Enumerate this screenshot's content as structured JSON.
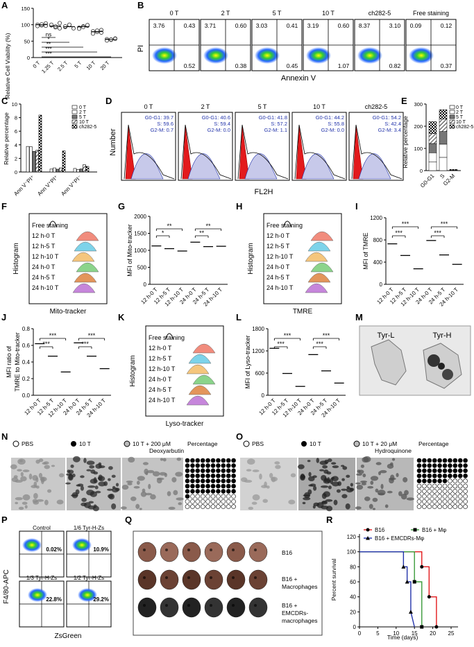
{
  "panels": {
    "A": {
      "letter": "A",
      "ylabel": "Relative Cell Viability (%)",
      "categories": [
        "0 T",
        "1.25 T",
        "2.5 T",
        "5 T",
        "10 T",
        "20 T"
      ],
      "yticks": [
        "150",
        "100",
        "50",
        "0"
      ],
      "stats": [
        "ns",
        "*",
        "**",
        "***",
        "***"
      ]
    },
    "B": {
      "letter": "B",
      "groups": [
        "0 T",
        "2 T",
        "5 T",
        "10 T",
        "ch282-5",
        "Free staining"
      ],
      "quadrants": [
        [
          "3.76",
          "0.43",
          "0.52"
        ],
        [
          "3.71",
          "0.60",
          "0.38"
        ],
        [
          "3.03",
          "0.41",
          "0.45"
        ],
        [
          "3.19",
          "0.60",
          "1.07"
        ],
        [
          "8.37",
          "3.10",
          "0.82"
        ],
        [
          "0.09",
          "0.12",
          "0.37"
        ]
      ],
      "ylabel": "PI",
      "xlabel": "Annexin V"
    },
    "C": {
      "letter": "C",
      "ylabel": "Relative percentage",
      "categories": [
        "Ann V⁻PI⁺",
        "Ann V⁺PI⁺",
        "Ann V⁺PI⁻"
      ],
      "legend": [
        "0 T",
        "2 T",
        "5 T",
        "10 T",
        "ch282-5"
      ],
      "yticks": [
        "10",
        "8",
        "6",
        "4",
        "2",
        "0"
      ]
    },
    "D": {
      "letter": "D",
      "groups": [
        "0 T",
        "2 T",
        "5 T",
        "10 T",
        "ch282-5"
      ],
      "cycle": [
        [
          "G0-G1: 39.7",
          "S: 59.6",
          "G2-M: 0.7"
        ],
        [
          "G0-G1: 40.6",
          "S: 59.4",
          "G2-M: 0.0"
        ],
        [
          "G0-G1: 41.8",
          "S: 57.2",
          "G2-M: 1.1"
        ],
        [
          "G0-G1: 44.2",
          "S: 55.8",
          "G2-M: 0.0"
        ],
        [
          "G0-G1: 54.2",
          "S: 42.4",
          "G2-M: 3.4"
        ]
      ],
      "ylabel": "Number",
      "xlabel": "FL2H"
    },
    "E": {
      "letter": "E",
      "ylabel": "Relative percentage",
      "categories": [
        "G0-G1",
        "S",
        "G2-M"
      ],
      "legend": [
        "0 T",
        "2 T",
        "5 T",
        "10 T",
        "ch282-5"
      ],
      "yticks": [
        "300",
        "200",
        "100",
        "0"
      ]
    },
    "F": {
      "letter": "F",
      "ylabel": "Histogram",
      "xlabel": "Mito-tracker",
      "rows": [
        "Free staining",
        "12 h-0 T",
        "12 h-5 T",
        "12 h-10 T",
        "24 h-0 T",
        "24 h-5 T",
        "24 h-10 T"
      ]
    },
    "G": {
      "letter": "G",
      "ylabel": "MFI of Mito-tracker",
      "yticks": [
        "2000",
        "1500",
        "1000",
        "500",
        "0"
      ],
      "categories": [
        "12 h-0 T",
        "12 h-5 T",
        "12 h-10 T",
        "24 h-0 T",
        "24 h-5 T",
        "24 h-10 T"
      ],
      "stats": [
        "**",
        "*",
        "**",
        "**"
      ]
    },
    "H": {
      "letter": "H",
      "ylabel": "Histogram",
      "xlabel": "TMRE",
      "rows": [
        "Free staining",
        "12 h-0 T",
        "12 h-5 T",
        "12 h-10 T",
        "24 h-0 T",
        "24 h-5 T",
        "24 h-10 T"
      ]
    },
    "I": {
      "letter": "I",
      "ylabel": "MFI of TMRE",
      "yticks": [
        "1200",
        "800",
        "400",
        "0"
      ],
      "categories": [
        "12 h-0 T",
        "12 h-5 T",
        "12 h-10 T",
        "24 h-0 T",
        "24 h-5 T",
        "24 h-10 T"
      ],
      "stats": [
        "***",
        "***",
        "***",
        "***"
      ]
    },
    "J": {
      "letter": "J",
      "ylabel1": "MFI ratio of",
      "ylabel2": "TMRE to Mito-tracker",
      "yticks": [
        "0.8",
        "0.6",
        "0.4",
        "0.2",
        "0.0"
      ],
      "categories": [
        "12 h-0 T",
        "12 h-5 T",
        "12 h-10 T",
        "24 h-0 T",
        "24 h-5 T",
        "24 h-10 T"
      ],
      "stats": [
        "***",
        "***",
        "***",
        "***"
      ]
    },
    "K": {
      "letter": "K",
      "ylabel": "Histogram",
      "xlabel": "Lyso-tracker",
      "rows": [
        "Free staining",
        "12 h-0 T",
        "12 h-5 T",
        "12 h-10 T",
        "24 h-0 T",
        "24 h-5 T",
        "24 h-10 T"
      ]
    },
    "L": {
      "letter": "L",
      "ylabel": "MFI of Lyso-tracker",
      "yticks": [
        "1800",
        "1200",
        "600",
        "0"
      ],
      "categories": [
        "12 h-0 T",
        "12 h-5 T",
        "12 h-10 T",
        "24 h-0 T",
        "24 h-5 T",
        "24 h-10 T"
      ],
      "stats": [
        "***",
        "***",
        "***",
        "***"
      ]
    },
    "M": {
      "letter": "M",
      "labels": [
        "Tyr-L",
        "Tyr-H"
      ]
    },
    "N": {
      "letter": "N",
      "legend": [
        "PBS",
        "10 T",
        "10 T + 200 μM",
        "Deoxyarbutin",
        "Percentage"
      ]
    },
    "O": {
      "letter": "O",
      "legend": [
        "PBS",
        "10 T",
        "10 T + 20 μM",
        "Hydroquinone",
        "Percentage"
      ]
    },
    "P": {
      "letter": "P",
      "ylabel": "F4/80-APC",
      "xlabel": "ZsGreen",
      "plots": [
        [
          "Control",
          "0.02%"
        ],
        [
          "1/6 Tyr-H-Zs",
          "10.9%"
        ],
        [
          "1/3 Tyr-H-Zs",
          "22.8%"
        ],
        [
          "1/2 Tyr-H-Zs",
          "29.2%"
        ]
      ]
    },
    "Q": {
      "letter": "Q",
      "rows": [
        "B16",
        "B16 +",
        "Macrophages",
        "B16 +",
        "EMCDRs-",
        "macrophages"
      ]
    },
    "R": {
      "letter": "R",
      "ylabel": "Percent survival",
      "xlabel": "Time (days)",
      "legend": [
        "B16",
        "B16 + Mφ",
        "B16 + EMCDRs-Mφ"
      ],
      "yticks": [
        "120",
        "100",
        "80",
        "60",
        "40",
        "20",
        "0"
      ],
      "xticks": [
        "0",
        "5",
        "10",
        "15",
        "20",
        "25"
      ]
    }
  },
  "chart_data": [
    {
      "panel": "A",
      "type": "scatter",
      "categories": [
        "0 T",
        "1.25 T",
        "2.5 T",
        "5 T",
        "10 T",
        "20 T"
      ],
      "ylim": [
        0,
        150
      ],
      "series": [
        {
          "values": [
            [
              100,
              98,
              104,
              96,
              101,
              97
            ],
            [
              98,
              92,
              105,
              100,
              95,
              89
            ],
            [
              93,
              99,
              89,
              95,
              100
            ],
            [
              91,
              95,
              97,
              88,
              93,
              99
            ],
            [
              80,
              78,
              84,
              73,
              82,
              76
            ],
            [
              56,
              54,
              58,
              52,
              55,
              57
            ]
          ]
        }
      ],
      "means": [
        100,
        96,
        94,
        94,
        79,
        55
      ]
    },
    {
      "panel": "C",
      "type": "bar",
      "categories": [
        "Ann V⁻PI⁺",
        "Ann V⁺PI⁺",
        "Ann V⁺PI⁻"
      ],
      "ylim": [
        0,
        10
      ],
      "series": [
        {
          "name": "0 T",
          "values": [
            3.76,
            0.43,
            0.52
          ]
        },
        {
          "name": "2 T",
          "values": [
            3.71,
            0.6,
            0.38
          ]
        },
        {
          "name": "5 T",
          "values": [
            3.03,
            0.41,
            0.45
          ]
        },
        {
          "name": "10 T",
          "values": [
            3.19,
            0.6,
            1.07
          ]
        },
        {
          "name": "ch282-5",
          "values": [
            8.37,
            3.1,
            0.82
          ]
        }
      ]
    },
    {
      "panel": "E",
      "type": "bar",
      "categories": [
        "G0-G1",
        "S",
        "G2-M"
      ],
      "ylim": [
        0,
        300
      ],
      "series": [
        {
          "name": "0 T",
          "values": [
            39.7,
            59.6,
            0.7
          ]
        },
        {
          "name": "2 T",
          "values": [
            40.6,
            59.4,
            0.0
          ]
        },
        {
          "name": "5 T",
          "values": [
            41.8,
            57.2,
            1.1
          ]
        },
        {
          "name": "10 T",
          "values": [
            44.2,
            55.8,
            0.0
          ]
        },
        {
          "name": "ch282-5",
          "values": [
            54.2,
            42.4,
            3.4
          ]
        }
      ]
    },
    {
      "panel": "G",
      "type": "scatter",
      "ylim": [
        0,
        2000
      ],
      "values": [
        1130,
        1050,
        980,
        1240,
        1110,
        1120
      ]
    },
    {
      "panel": "I",
      "type": "scatter",
      "ylim": [
        0,
        1200
      ],
      "values": [
        730,
        520,
        280,
        790,
        530,
        360
      ]
    },
    {
      "panel": "J",
      "type": "scatter",
      "ylim": [
        0,
        0.8
      ],
      "values": [
        0.62,
        0.47,
        0.28,
        0.63,
        0.47,
        0.32
      ]
    },
    {
      "panel": "L",
      "type": "scatter",
      "ylim": [
        0,
        1800
      ],
      "values": [
        1270,
        590,
        240,
        1100,
        660,
        330
      ]
    },
    {
      "panel": "R",
      "type": "line",
      "xlim": [
        0,
        25
      ],
      "ylim": [
        0,
        120
      ],
      "series": [
        {
          "name": "B16",
          "x": [
            0,
            17,
            17,
            19,
            19,
            21,
            21
          ],
          "y": [
            100,
            100,
            80,
            80,
            40,
            40,
            0
          ]
        },
        {
          "name": "B16 + Mφ",
          "x": [
            0,
            15,
            15,
            17,
            17
          ],
          "y": [
            100,
            100,
            60,
            60,
            0
          ]
        },
        {
          "name": "B16 + EMCDRs-Mφ",
          "x": [
            0,
            12,
            12,
            13,
            13,
            14,
            14,
            15
          ],
          "y": [
            100,
            100,
            80,
            80,
            60,
            60,
            20,
            0
          ]
        }
      ]
    }
  ],
  "colors": {
    "red": "#e31a1c",
    "green": "#3a9b3a",
    "blue": "#2233aa",
    "hist": [
      "#f08070",
      "#6fcfe8",
      "#f5c070",
      "#7fd07f",
      "#e08a4a",
      "#c07ad8"
    ]
  }
}
